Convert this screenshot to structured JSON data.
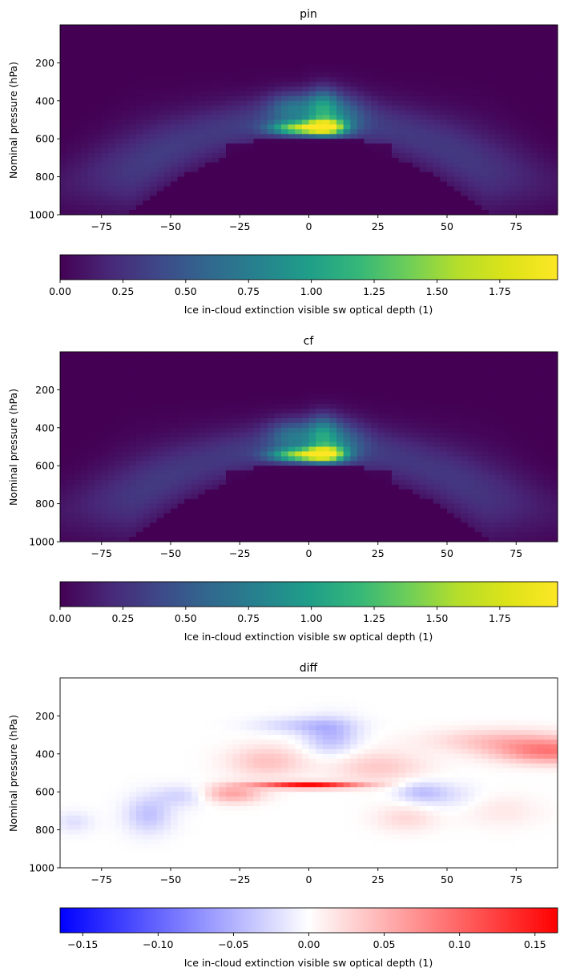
{
  "chart_data": [
    {
      "type": "heatmap",
      "title": "pin",
      "xlabel": "",
      "ylabel": "Nominal pressure (hPa)",
      "xlim": [
        -90,
        90
      ],
      "ylim": [
        1000,
        0
      ],
      "xticks": [
        -75,
        -50,
        -25,
        0,
        25,
        50,
        75
      ],
      "yticks": [
        200,
        400,
        600,
        800,
        1000
      ],
      "grid": false,
      "colormap": "viridis",
      "colorbar": {
        "label": "Ice in-cloud extinction visible sw optical depth (1)",
        "range": [
          0,
          1.98
        ],
        "ticks": [
          "0.00",
          "0.25",
          "0.50",
          "0.75",
          "1.00",
          "1.25",
          "1.50",
          "1.75"
        ]
      },
      "features": [
        {
          "lat": 6,
          "p": 540,
          "value": 1.98
        },
        {
          "lat": -3,
          "p": 540,
          "value": 1.55
        },
        {
          "lat": 5,
          "p": 420,
          "value": 1.2
        },
        {
          "lat": -60,
          "p": 750,
          "value": 0.4
        },
        {
          "lat": 60,
          "p": 700,
          "value": 0.35
        }
      ]
    },
    {
      "type": "heatmap",
      "title": "cf",
      "xlabel": "",
      "ylabel": "Nominal pressure (hPa)",
      "xlim": [
        -90,
        90
      ],
      "ylim": [
        1000,
        0
      ],
      "xticks": [
        -75,
        -50,
        -25,
        0,
        25,
        50,
        75
      ],
      "yticks": [
        200,
        400,
        600,
        800,
        1000
      ],
      "grid": false,
      "colormap": "viridis",
      "colorbar": {
        "label": "Ice in-cloud extinction visible sw optical depth (1)",
        "range": [
          0,
          1.98
        ],
        "ticks": [
          "0.00",
          "0.25",
          "0.50",
          "0.75",
          "1.00",
          "1.25",
          "1.50",
          "1.75"
        ]
      },
      "features": [
        {
          "lat": 6,
          "p": 540,
          "value": 1.98
        },
        {
          "lat": -3,
          "p": 540,
          "value": 1.5
        },
        {
          "lat": 5,
          "p": 420,
          "value": 1.15
        },
        {
          "lat": -60,
          "p": 750,
          "value": 0.4
        },
        {
          "lat": 60,
          "p": 700,
          "value": 0.35
        }
      ]
    },
    {
      "type": "heatmap",
      "title": "diff",
      "xlabel": "",
      "ylabel": "Nominal pressure (hPa)",
      "xlim": [
        -90,
        90
      ],
      "ylim": [
        1000,
        0
      ],
      "xticks": [
        -75,
        -50,
        -25,
        0,
        25,
        50,
        75
      ],
      "yticks": [
        200,
        400,
        600,
        800,
        1000
      ],
      "grid": false,
      "colormap": "bwr",
      "colorbar": {
        "label": "Ice in-cloud extinction visible sw optical depth (1)",
        "range": [
          -0.165,
          0.165
        ],
        "ticks": [
          "−0.15",
          "−0.10",
          "−0.05",
          "0.00",
          "0.05",
          "0.10",
          "0.15"
        ]
      },
      "features": [
        {
          "lat": 0,
          "p": 565,
          "value": 0.16
        },
        {
          "lat": 85,
          "p": 380,
          "value": 0.08
        },
        {
          "lat": -15,
          "p": 420,
          "value": 0.04
        },
        {
          "lat": 8,
          "p": 300,
          "value": -0.04
        },
        {
          "lat": -58,
          "p": 720,
          "value": -0.04
        },
        {
          "lat": 40,
          "p": 600,
          "value": -0.035
        }
      ]
    }
  ]
}
